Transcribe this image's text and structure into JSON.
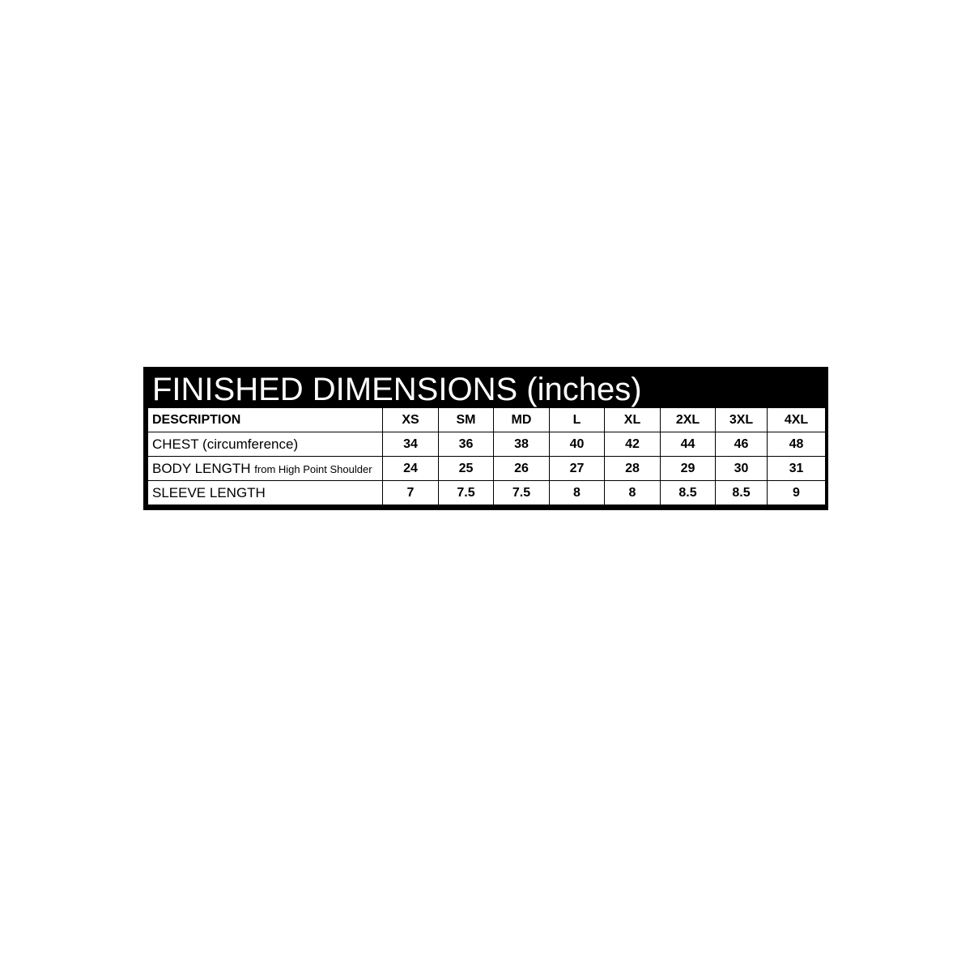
{
  "title": "FINISHED DIMENSIONS (inches)",
  "table": {
    "header": [
      "DESCRIPTION",
      "XS",
      "SM",
      "MD",
      "L",
      "XL",
      "2XL",
      "3XL",
      "4XL"
    ],
    "rows": [
      {
        "label": "CHEST (circumference)",
        "note": "",
        "values": [
          "34",
          "36",
          "38",
          "40",
          "42",
          "44",
          "46",
          "48"
        ]
      },
      {
        "label": "BODY LENGTH",
        "note": "from High Point Shoulder",
        "values": [
          "24",
          "25",
          "26",
          "27",
          "28",
          "29",
          "30",
          "31"
        ]
      },
      {
        "label": "SLEEVE LENGTH",
        "note": "",
        "values": [
          "7",
          "7.5",
          "7.5",
          "8",
          "8",
          "8.5",
          "8.5",
          "9"
        ]
      }
    ]
  },
  "colors": {
    "frame": "#000000",
    "title_text": "#ffffff"
  }
}
